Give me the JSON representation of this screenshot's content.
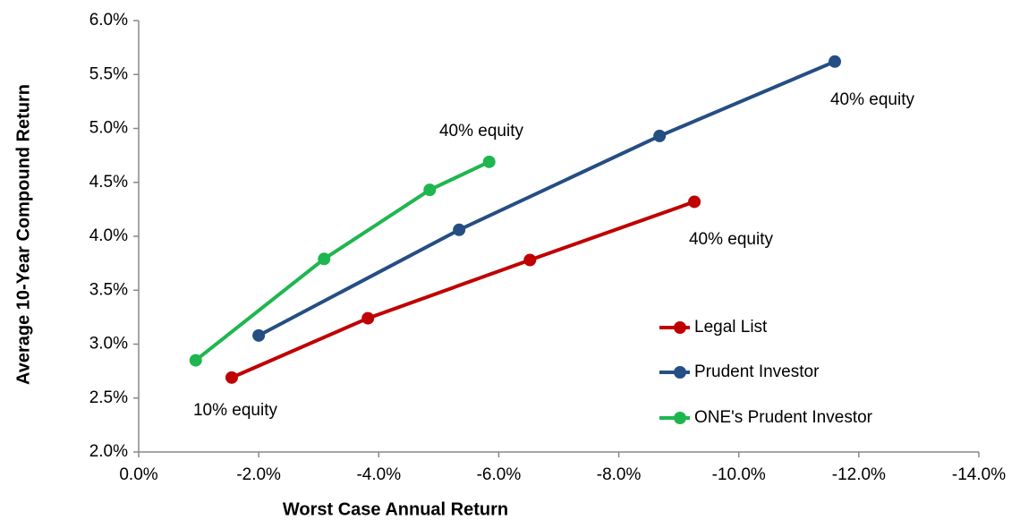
{
  "chart_data": {
    "type": "line",
    "xlabel": "Worst Case Annual Return",
    "ylabel": "Average 10-Year Compound Return",
    "xlim": [
      0,
      -14
    ],
    "ylim": [
      2.0,
      6.0
    ],
    "xticks": [
      {
        "value": 0,
        "label": "0.0%"
      },
      {
        "value": -2,
        "label": "-2.0%"
      },
      {
        "value": -4,
        "label": "-4.0%"
      },
      {
        "value": -6,
        "label": "-6.0%"
      },
      {
        "value": -8,
        "label": "-8.0%"
      },
      {
        "value": -10,
        "label": "-10.0%"
      },
      {
        "value": -12,
        "label": "-12.0%"
      },
      {
        "value": -14,
        "label": "-14.0%"
      }
    ],
    "yticks": [
      {
        "value": 2.0,
        "label": "2.0%"
      },
      {
        "value": 2.5,
        "label": "2.5%"
      },
      {
        "value": 3.0,
        "label": "3.0%"
      },
      {
        "value": 3.5,
        "label": "3.5%"
      },
      {
        "value": 4.0,
        "label": "4.0%"
      },
      {
        "value": 4.5,
        "label": "4.5%"
      },
      {
        "value": 5.0,
        "label": "5.0%"
      },
      {
        "value": 5.5,
        "label": "5.5%"
      },
      {
        "value": 6.0,
        "label": "6.0%"
      }
    ],
    "grid": false,
    "legend": "lower right",
    "series": [
      {
        "name": "Legal List",
        "color": "#c00000",
        "x": [
          -1.55,
          -3.82,
          -6.52,
          -9.26
        ],
        "values": [
          2.69,
          3.24,
          3.78,
          4.32
        ]
      },
      {
        "name": "Prudent Investor",
        "color": "#254e83",
        "x": [
          -2.0,
          -5.34,
          -8.68,
          -11.6
        ],
        "values": [
          3.08,
          4.06,
          4.93,
          5.62
        ]
      },
      {
        "name": "ONE's Prudent Investor",
        "color": "#1fb64f",
        "x": [
          -0.95,
          -3.09,
          -4.85,
          -5.84
        ],
        "values": [
          2.85,
          3.79,
          4.43,
          4.69
        ]
      }
    ],
    "annotations": [
      "40% equity",
      "40% equity",
      "40% equity",
      "10% equity"
    ]
  }
}
